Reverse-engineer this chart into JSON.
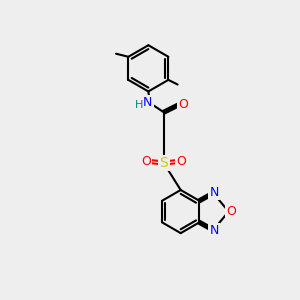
{
  "bg_color": "#eeeeee",
  "bond_color": "#000000",
  "bond_lw": 1.5,
  "atom_colors": {
    "N": "#0000ff",
    "O": "#ff0000",
    "S": "#cccc00",
    "H": "#008080",
    "C": "#000000"
  },
  "font_size_atom": 9,
  "font_size_methyl": 8
}
